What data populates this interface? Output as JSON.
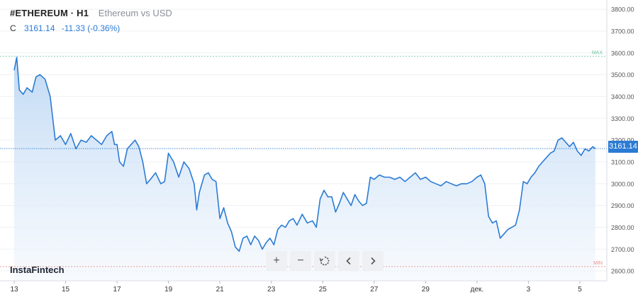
{
  "header": {
    "symbol": "#ETHEREUM · H1",
    "subtitle": "Ethereum vs USD",
    "quote_label": "C",
    "last_price": "3161.14",
    "change": "-11.33 (-0.36%)"
  },
  "brand": "InstaFintech",
  "toolbar": {
    "zoom_in": "+",
    "zoom_out": "−",
    "reset": "reset-icon",
    "back": "chevron-left-icon",
    "forward": "chevron-right-icon"
  },
  "colors": {
    "line": "#2b7bd4",
    "area_top": "#b9d5f3",
    "area_bottom": "#f2f7fd",
    "max_line": "#6cc49a",
    "min_line": "#e88a8a",
    "price_line": "#2b7bd4"
  },
  "chart_data": {
    "type": "area",
    "series_name": "Ethereum vs USD",
    "ylim": [
      2580,
      3830
    ],
    "y_ticks": [
      "3800.00",
      "3700.00",
      "3600.00",
      "3500.00",
      "3400.00",
      "3300.00",
      "3200.00",
      "3100.00",
      "3000.00",
      "2900.00",
      "2800.00",
      "2700.00",
      "2600.00"
    ],
    "y_tick_values": [
      3800,
      3700,
      3600,
      3500,
      3400,
      3300,
      3200,
      3100,
      3000,
      2900,
      2800,
      2700,
      2600
    ],
    "x_ticks": [
      "13",
      "15",
      "17",
      "19",
      "21",
      "23",
      "25",
      "27",
      "29",
      "дек.",
      "3",
      "5"
    ],
    "x_tick_days": [
      13,
      15,
      17,
      19,
      21,
      23,
      25,
      27,
      29,
      31,
      33,
      35
    ],
    "xlim": [
      13,
      36
    ],
    "max_label": "MAX",
    "min_label": "MIN",
    "max_value": 3585,
    "min_value": 2620,
    "last_value": 3161.14,
    "last_label": "3161.14",
    "points": [
      [
        13.0,
        3520
      ],
      [
        13.1,
        3580
      ],
      [
        13.2,
        3430
      ],
      [
        13.35,
        3410
      ],
      [
        13.5,
        3440
      ],
      [
        13.7,
        3420
      ],
      [
        13.85,
        3490
      ],
      [
        14.0,
        3500
      ],
      [
        14.2,
        3480
      ],
      [
        14.4,
        3400
      ],
      [
        14.6,
        3200
      ],
      [
        14.8,
        3220
      ],
      [
        15.0,
        3180
      ],
      [
        15.2,
        3230
      ],
      [
        15.4,
        3160
      ],
      [
        15.6,
        3200
      ],
      [
        15.8,
        3190
      ],
      [
        16.0,
        3220
      ],
      [
        16.2,
        3200
      ],
      [
        16.4,
        3180
      ],
      [
        16.6,
        3220
      ],
      [
        16.8,
        3240
      ],
      [
        16.9,
        3180
      ],
      [
        17.0,
        3180
      ],
      [
        17.1,
        3100
      ],
      [
        17.25,
        3080
      ],
      [
        17.4,
        3160
      ],
      [
        17.55,
        3180
      ],
      [
        17.7,
        3200
      ],
      [
        17.85,
        3170
      ],
      [
        18.0,
        3100
      ],
      [
        18.15,
        3000
      ],
      [
        18.3,
        3020
      ],
      [
        18.5,
        3050
      ],
      [
        18.7,
        3000
      ],
      [
        18.85,
        3010
      ],
      [
        19.0,
        3140
      ],
      [
        19.2,
        3100
      ],
      [
        19.4,
        3030
      ],
      [
        19.6,
        3100
      ],
      [
        19.8,
        3070
      ],
      [
        20.0,
        3000
      ],
      [
        20.1,
        2880
      ],
      [
        20.2,
        2960
      ],
      [
        20.4,
        3040
      ],
      [
        20.55,
        3050
      ],
      [
        20.7,
        3020
      ],
      [
        20.85,
        3010
      ],
      [
        21.0,
        2840
      ],
      [
        21.15,
        2890
      ],
      [
        21.3,
        2820
      ],
      [
        21.45,
        2780
      ],
      [
        21.6,
        2710
      ],
      [
        21.75,
        2690
      ],
      [
        21.9,
        2750
      ],
      [
        22.05,
        2760
      ],
      [
        22.2,
        2720
      ],
      [
        22.35,
        2760
      ],
      [
        22.5,
        2740
      ],
      [
        22.65,
        2700
      ],
      [
        22.8,
        2730
      ],
      [
        22.95,
        2750
      ],
      [
        23.1,
        2720
      ],
      [
        23.25,
        2790
      ],
      [
        23.4,
        2810
      ],
      [
        23.55,
        2800
      ],
      [
        23.7,
        2830
      ],
      [
        23.85,
        2840
      ],
      [
        24.0,
        2810
      ],
      [
        24.2,
        2860
      ],
      [
        24.4,
        2820
      ],
      [
        24.6,
        2830
      ],
      [
        24.75,
        2800
      ],
      [
        24.9,
        2930
      ],
      [
        25.05,
        2970
      ],
      [
        25.2,
        2940
      ],
      [
        25.35,
        2940
      ],
      [
        25.5,
        2870
      ],
      [
        25.65,
        2910
      ],
      [
        25.8,
        2960
      ],
      [
        25.95,
        2930
      ],
      [
        26.1,
        2900
      ],
      [
        26.25,
        2950
      ],
      [
        26.4,
        2920
      ],
      [
        26.55,
        2900
      ],
      [
        26.7,
        2910
      ],
      [
        26.85,
        3030
      ],
      [
        27.0,
        3020
      ],
      [
        27.2,
        3040
      ],
      [
        27.4,
        3030
      ],
      [
        27.6,
        3030
      ],
      [
        27.8,
        3020
      ],
      [
        28.0,
        3030
      ],
      [
        28.2,
        3010
      ],
      [
        28.4,
        3030
      ],
      [
        28.6,
        3050
      ],
      [
        28.8,
        3020
      ],
      [
        29.0,
        3030
      ],
      [
        29.2,
        3010
      ],
      [
        29.4,
        3000
      ],
      [
        29.6,
        2990
      ],
      [
        29.8,
        3010
      ],
      [
        30.0,
        3000
      ],
      [
        30.2,
        2990
      ],
      [
        30.4,
        3000
      ],
      [
        30.6,
        3000
      ],
      [
        30.8,
        3010
      ],
      [
        31.0,
        3030
      ],
      [
        31.15,
        3040
      ],
      [
        31.3,
        3000
      ],
      [
        31.45,
        2850
      ],
      [
        31.6,
        2820
      ],
      [
        31.75,
        2830
      ],
      [
        31.9,
        2750
      ],
      [
        32.05,
        2770
      ],
      [
        32.2,
        2790
      ],
      [
        32.35,
        2800
      ],
      [
        32.5,
        2810
      ],
      [
        32.65,
        2880
      ],
      [
        32.8,
        3010
      ],
      [
        32.95,
        3000
      ],
      [
        33.1,
        3030
      ],
      [
        33.25,
        3050
      ],
      [
        33.4,
        3080
      ],
      [
        33.55,
        3100
      ],
      [
        33.7,
        3120
      ],
      [
        33.85,
        3140
      ],
      [
        34.0,
        3150
      ],
      [
        34.15,
        3200
      ],
      [
        34.3,
        3210
      ],
      [
        34.45,
        3190
      ],
      [
        34.6,
        3170
      ],
      [
        34.75,
        3190
      ],
      [
        34.9,
        3150
      ],
      [
        35.05,
        3130
      ],
      [
        35.2,
        3160
      ],
      [
        35.35,
        3150
      ],
      [
        35.5,
        3170
      ],
      [
        35.6,
        3161.14
      ]
    ]
  }
}
